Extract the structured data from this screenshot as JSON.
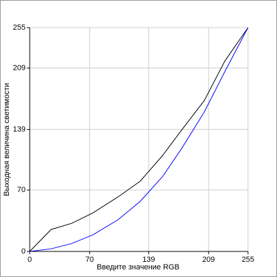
{
  "chart_data": {
    "type": "line",
    "xlabel": "Введите значение RGB",
    "ylabel": "Выходная величина светимости",
    "x": [
      0,
      25,
      49,
      74,
      103,
      129,
      155,
      178,
      204,
      228,
      255
    ],
    "series": [
      {
        "color": "#000000",
        "values": [
          0,
          25,
          32,
          44,
          62,
          80,
          109,
          139,
          172,
          217,
          255
        ]
      },
      {
        "color": "#0000ff",
        "values": [
          0,
          3,
          9,
          19,
          36,
          57,
          85,
          118,
          159,
          205,
          255
        ]
      }
    ],
    "xlim": [
      0,
      255
    ],
    "ylim": [
      0,
      255
    ],
    "xticks": [
      0,
      70,
      139,
      209,
      255
    ],
    "yticks": [
      0,
      70,
      139,
      209,
      255
    ],
    "grid": true
  }
}
